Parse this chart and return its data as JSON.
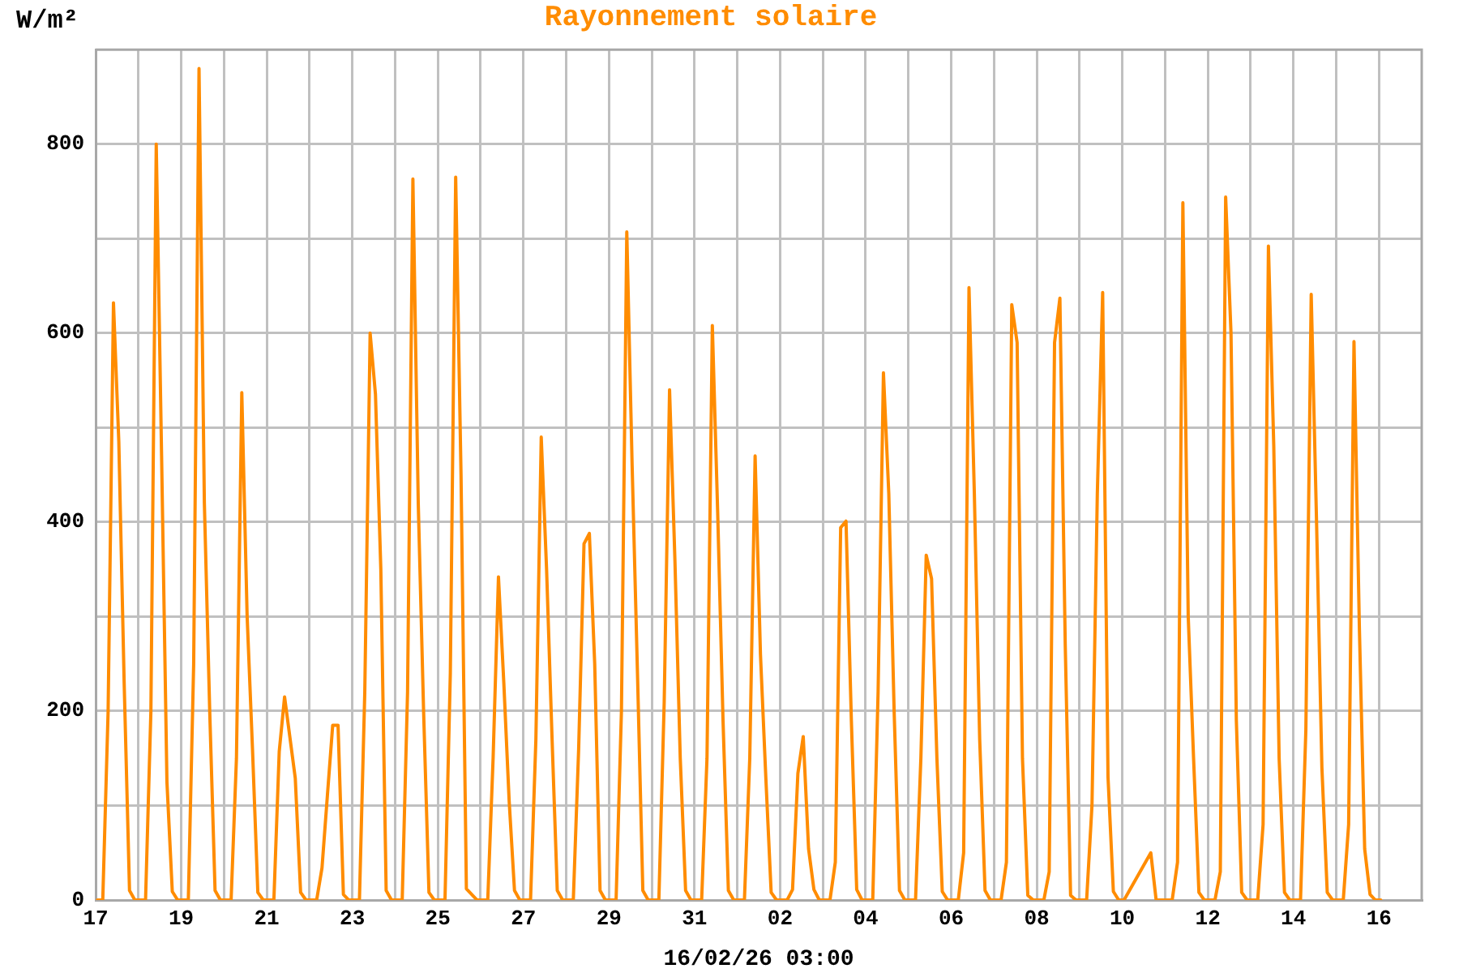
{
  "chart_data": {
    "type": "line",
    "title": "Rayonnement solaire",
    "xlabel": "16/02/26 03:00",
    "ylabel": "W/m²",
    "x": [
      "--01-17T01:00",
      "--01-17T04:00",
      "--01-17T07:00",
      "--01-17T10:00",
      "--01-17T13:00",
      "--01-17T16:00",
      "--01-17T19:00",
      "--01-17T22:00",
      "--01-18T04:00",
      "--01-18T07:00",
      "--01-18T10:00",
      "--01-18T13:00",
      "--01-18T16:00",
      "--01-18T19:00",
      "--01-18T22:00",
      "--01-19T04:00",
      "--01-19T07:00",
      "--01-19T10:00",
      "--01-19T13:00",
      "--01-19T16:00",
      "--01-19T19:00",
      "--01-19T22:00",
      "--01-20T04:00",
      "--01-20T07:00",
      "--01-20T10:00",
      "--01-20T13:00",
      "--01-20T16:00",
      "--01-20T19:00",
      "--01-20T22:00",
      "--01-21T04:00",
      "--01-21T07:00",
      "--01-21T10:00",
      "--01-21T13:00",
      "--01-21T16:00",
      "--01-21T19:00",
      "--01-21T22:00",
      "--01-22T04:00",
      "--01-22T07:00",
      "--01-22T10:00",
      "--01-22T13:00",
      "--01-22T16:00",
      "--01-22T19:00",
      "--01-22T22:00",
      "--01-23T04:00",
      "--01-23T07:00",
      "--01-23T10:00",
      "--01-23T13:00",
      "--01-23T16:00",
      "--01-23T19:00",
      "--01-23T22:00",
      "--01-24T04:00",
      "--01-24T07:00",
      "--01-24T10:00",
      "--01-24T13:00",
      "--01-24T16:00",
      "--01-24T19:00",
      "--01-24T22:00",
      "--01-25T04:00",
      "--01-25T07:00",
      "--01-25T10:00",
      "--01-25T13:00",
      "--01-25T16:00",
      "--01-25T19:00",
      "--01-25T22:00",
      "--01-26T04:00",
      "--01-26T07:00",
      "--01-26T10:00",
      "--01-26T13:00",
      "--01-26T16:00",
      "--01-26T19:00",
      "--01-26T22:00",
      "--01-27T04:00",
      "--01-27T07:00",
      "--01-27T10:00",
      "--01-27T13:00",
      "--01-27T16:00",
      "--01-27T19:00",
      "--01-27T22:00",
      "--01-28T04:00",
      "--01-28T07:00",
      "--01-28T10:00",
      "--01-28T13:00",
      "--01-28T16:00",
      "--01-28T19:00",
      "--01-28T22:00",
      "--01-29T04:00",
      "--01-29T07:00",
      "--01-29T10:00",
      "--01-29T13:00",
      "--01-29T16:00",
      "--01-29T19:00",
      "--01-29T22:00",
      "--01-30T04:00",
      "--01-30T07:00",
      "--01-30T10:00",
      "--01-30T13:00",
      "--01-30T16:00",
      "--01-30T19:00",
      "--01-30T22:00",
      "--01-31T04:00",
      "--01-31T07:00",
      "--01-31T10:00",
      "--01-31T13:00",
      "--01-31T16:00",
      "--01-31T19:00",
      "--01-31T22:00",
      "--02-01T04:00",
      "--02-01T07:00",
      "--02-01T10:00",
      "--02-01T13:00",
      "--02-01T16:00",
      "--02-01T19:00",
      "--02-01T22:00",
      "--02-02T04:00",
      "--02-02T07:00",
      "--02-02T10:00",
      "--02-02T13:00",
      "--02-02T16:00",
      "--02-02T19:00",
      "--02-02T22:00",
      "--02-03T04:00",
      "--02-03T07:00",
      "--02-03T10:00",
      "--02-03T13:00",
      "--02-03T16:00",
      "--02-03T19:00",
      "--02-03T22:00",
      "--02-04T04:00",
      "--02-04T07:00",
      "--02-04T10:00",
      "--02-04T13:00",
      "--02-04T16:00",
      "--02-04T19:00",
      "--02-04T22:00",
      "--02-05T04:00",
      "--02-05T07:00",
      "--02-05T10:00",
      "--02-05T13:00",
      "--02-05T16:00",
      "--02-05T19:00",
      "--02-05T22:00",
      "--02-06T04:00",
      "--02-06T07:00",
      "--02-06T10:00",
      "--02-06T13:00",
      "--02-06T16:00",
      "--02-06T19:00",
      "--02-06T22:00",
      "--02-07T04:00",
      "--02-07T07:00",
      "--02-07T10:00",
      "--02-07T13:00",
      "--02-07T16:00",
      "--02-07T19:00",
      "--02-07T22:00",
      "--02-08T04:00",
      "--02-08T07:00",
      "--02-08T10:00",
      "--02-08T13:00",
      "--02-08T16:00",
      "--02-08T19:00",
      "--02-08T22:00",
      "--02-09T04:00",
      "--02-09T07:00",
      "--02-09T10:00",
      "--02-09T13:00",
      "--02-09T16:00",
      "--02-09T19:00",
      "--02-09T22:00",
      "--02-10T01:00",
      "--02-10T16:00",
      "--02-10T19:00",
      "--02-10T22:00",
      "--02-11T04:00",
      "--02-11T07:00",
      "--02-11T10:00",
      "--02-11T13:00",
      "--02-11T16:00",
      "--02-11T19:00",
      "--02-11T22:00",
      "--02-12T04:00",
      "--02-12T07:00",
      "--02-12T10:00",
      "--02-12T13:00",
      "--02-12T16:00",
      "--02-12T19:00",
      "--02-12T22:00",
      "--02-13T04:00",
      "--02-13T07:00",
      "--02-13T10:00",
      "--02-13T13:00",
      "--02-13T16:00",
      "--02-13T19:00",
      "--02-13T22:00",
      "--02-14T04:00",
      "--02-14T07:00",
      "--02-14T10:00",
      "--02-14T13:00",
      "--02-14T16:00",
      "--02-14T19:00",
      "--02-14T22:00",
      "--02-15T04:00",
      "--02-15T07:00",
      "--02-15T10:00",
      "--02-15T13:00",
      "--02-15T16:00",
      "--02-15T19:00",
      "--02-15T22:00",
      "--02-16T01:00"
    ],
    "values": [
      0,
      0,
      200,
      632,
      485,
      230,
      10,
      0,
      0,
      200,
      800,
      470,
      125,
      9,
      0,
      0,
      250,
      880,
      420,
      200,
      10,
      0,
      0,
      150,
      537,
      300,
      160,
      8,
      0,
      0,
      157,
      215,
      172,
      129,
      8,
      0,
      0,
      34,
      110,
      185,
      185,
      6,
      0,
      0,
      220,
      600,
      535,
      350,
      10,
      0,
      0,
      220,
      763,
      420,
      200,
      8,
      0,
      0,
      240,
      765,
      450,
      12,
      6,
      0,
      0,
      150,
      342,
      230,
      105,
      10,
      0,
      0,
      170,
      490,
      350,
      175,
      10,
      0,
      0,
      160,
      377,
      388,
      250,
      10,
      0,
      0,
      200,
      707,
      460,
      240,
      10,
      0,
      0,
      210,
      540,
      360,
      150,
      10,
      0,
      0,
      150,
      608,
      410,
      190,
      10,
      0,
      0,
      150,
      470,
      260,
      130,
      8,
      0,
      0,
      11,
      134,
      173,
      54,
      11,
      0,
      0,
      40,
      394,
      401,
      190,
      11,
      0,
      0,
      220,
      558,
      430,
      200,
      10,
      0,
      0,
      150,
      365,
      340,
      150,
      9,
      0,
      0,
      50,
      648,
      430,
      170,
      10,
      0,
      0,
      40,
      630,
      590,
      150,
      5,
      0,
      0,
      30,
      590,
      637,
      270,
      5,
      0,
      0,
      100,
      430,
      643,
      130,
      9,
      0,
      0,
      50,
      0,
      0,
      0,
      40,
      738,
      300,
      150,
      8,
      0,
      0,
      30,
      744,
      600,
      190,
      8,
      0,
      0,
      80,
      692,
      480,
      150,
      8,
      0,
      0,
      180,
      641,
      400,
      140,
      8,
      0,
      0,
      80,
      591,
      290,
      54,
      6,
      0,
      0
    ],
    "color": "#ff8c00",
    "xlim": [
      "--01-17",
      "--02-17"
    ],
    "xticks": [
      {
        "value": "--01-17",
        "label": "17"
      },
      {
        "value": "--01-18",
        "label": null
      },
      {
        "value": "--01-19",
        "label": "19"
      },
      {
        "value": "--01-20",
        "label": null
      },
      {
        "value": "--01-21",
        "label": "21"
      },
      {
        "value": "--01-22",
        "label": null
      },
      {
        "value": "--01-23",
        "label": "23"
      },
      {
        "value": "--01-24",
        "label": null
      },
      {
        "value": "--01-25",
        "label": "25"
      },
      {
        "value": "--01-26",
        "label": null
      },
      {
        "value": "--01-27",
        "label": "27"
      },
      {
        "value": "--01-28",
        "label": null
      },
      {
        "value": "--01-29",
        "label": "29"
      },
      {
        "value": "--01-30",
        "label": null
      },
      {
        "value": "--01-31",
        "label": "31"
      },
      {
        "value": "--02-01",
        "label": null
      },
      {
        "value": "--02-02",
        "label": "02"
      },
      {
        "value": "--02-03",
        "label": null
      },
      {
        "value": "--02-04",
        "label": "04"
      },
      {
        "value": "--02-05",
        "label": null
      },
      {
        "value": "--02-06",
        "label": "06"
      },
      {
        "value": "--02-07",
        "label": null
      },
      {
        "value": "--02-08",
        "label": "08"
      },
      {
        "value": "--02-09",
        "label": null
      },
      {
        "value": "--02-10",
        "label": "10"
      },
      {
        "value": "--02-11",
        "label": null
      },
      {
        "value": "--02-12",
        "label": "12"
      },
      {
        "value": "--02-13",
        "label": null
      },
      {
        "value": "--02-14",
        "label": "14"
      },
      {
        "value": "--02-15",
        "label": null
      },
      {
        "value": "--02-16",
        "label": "16"
      }
    ],
    "ylim": [
      0,
      900
    ],
    "yticks": [
      0,
      {
        "value": 100,
        "label": null
      },
      200,
      {
        "value": 300,
        "label": null
      },
      400,
      {
        "value": 500,
        "label": null
      },
      600,
      {
        "value": 700,
        "label": null
      },
      800
    ],
    "grid": true
  }
}
